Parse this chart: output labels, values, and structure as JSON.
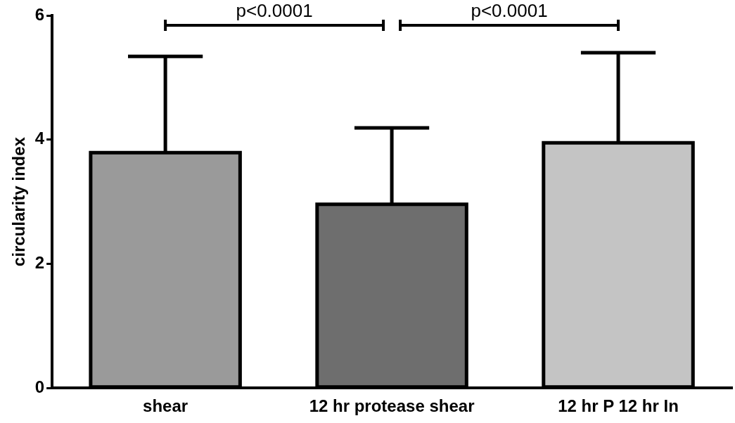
{
  "chart_data": {
    "type": "bar",
    "ylabel": "circularity index",
    "categories": [
      "shear",
      "12 hr protease shear",
      "12 hr P 12 hr In"
    ],
    "values": [
      3.79,
      2.96,
      3.95
    ],
    "errors": [
      [
        3.79,
        5.34
      ],
      [
        2.96,
        4.19
      ],
      [
        3.95,
        5.4
      ]
    ],
    "colors": [
      "#9a9a9a",
      "#6e6e6e",
      "#c4c4c4"
    ],
    "ylim": [
      0,
      6
    ],
    "yticks": [
      0,
      2,
      4,
      6
    ],
    "grid": false,
    "legend": false,
    "annotations": [
      "p<0.0001",
      "p<0.0001"
    ]
  }
}
